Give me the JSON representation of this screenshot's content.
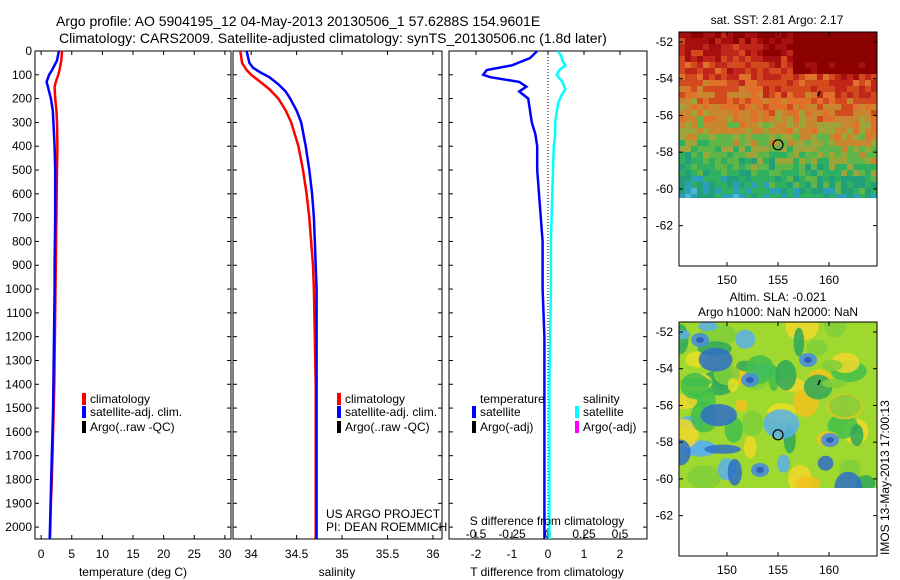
{
  "header": {
    "line1": "Argo profile: AO 5904195_12 04-May-2013 20130506_1 57.6288S 154.9601E",
    "line2": "Climatology: CARS2009. Satellite-adjusted climatology: synTS_20130506.nc (1.8d later)"
  },
  "side_label": "IMOS 13-May-2013 17:00:13",
  "colors": {
    "climatology": "#ff0000",
    "satellite": "#0000ff",
    "argo": "#000000",
    "salinity_satellite": "#00ffff",
    "salinity_argo": "#ff00ff"
  },
  "chart_data": [
    {
      "type": "line",
      "panel": "temperature",
      "xlabel": "temperature (deg C)",
      "ylim": [
        2050,
        0
      ],
      "xlim": [
        -1,
        31
      ],
      "xticks": [
        0,
        5,
        10,
        15,
        20,
        25,
        30
      ],
      "yticks": [
        0,
        100,
        200,
        300,
        400,
        500,
        600,
        700,
        800,
        900,
        1000,
        1100,
        1200,
        1300,
        1400,
        1500,
        1600,
        1700,
        1800,
        1900,
        2000
      ],
      "legend": [
        "climatology",
        "satellite-adj. clim.",
        "Argo(..raw -QC)"
      ],
      "series": [
        {
          "name": "climatology",
          "color": "#ff0000",
          "depth": [
            0,
            40,
            80,
            100,
            130,
            150,
            200,
            250,
            300,
            400,
            500,
            600,
            700,
            800,
            900,
            1000,
            1100,
            1200,
            1300,
            1400,
            1500,
            1600,
            1700,
            1800,
            1900,
            2000,
            2050
          ],
          "values": [
            3.4,
            3.3,
            3.0,
            2.8,
            2.4,
            2.2,
            2.3,
            2.5,
            2.6,
            2.65,
            2.6,
            2.55,
            2.5,
            2.45,
            2.4,
            2.35,
            2.3,
            2.25,
            2.2,
            2.15,
            2.05,
            1.95,
            1.85,
            1.75,
            1.6,
            1.5,
            1.45
          ]
        },
        {
          "name": "satellite-adj. clim.",
          "color": "#0000ff",
          "depth": [
            0,
            40,
            80,
            100,
            130,
            150,
            200,
            250,
            300,
            400,
            500,
            600,
            700,
            800,
            900,
            1000,
            1100,
            1200,
            1300,
            1400,
            1500,
            1600,
            1700,
            1800,
            1900,
            2000,
            2050
          ],
          "values": [
            2.9,
            2.6,
            1.8,
            1.3,
            0.9,
            1.1,
            1.6,
            1.9,
            2.0,
            2.2,
            2.3,
            2.3,
            2.3,
            2.25,
            2.2,
            2.2,
            2.15,
            2.1,
            2.05,
            2.0,
            1.95,
            1.85,
            1.75,
            1.65,
            1.55,
            1.45,
            1.4
          ]
        }
      ]
    },
    {
      "type": "line",
      "panel": "salinity",
      "xlabel": "salinity",
      "ylim": [
        2050,
        0
      ],
      "xlim": [
        33.8,
        36.1
      ],
      "xticks": [
        34,
        34.5,
        35,
        35.5,
        36
      ],
      "xtick_labels": [
        "34",
        "34.5",
        "35",
        "35.5",
        "36"
      ],
      "legend": [
        "climatology",
        "satellite-adj. clim.",
        "Argo(..raw -QC)"
      ],
      "annotation": [
        "US ARGO PROJECT",
        "PI: DEAN ROEMMICH"
      ],
      "series": [
        {
          "name": "climatology",
          "color": "#ff0000",
          "depth": [
            0,
            50,
            80,
            100,
            130,
            160,
            200,
            250,
            300,
            400,
            500,
            600,
            700,
            800,
            900,
            1000,
            1200,
            1400,
            1600,
            1800,
            2000,
            2050
          ],
          "values": [
            33.88,
            33.9,
            33.95,
            34.0,
            34.1,
            34.2,
            34.3,
            34.38,
            34.44,
            34.52,
            34.57,
            34.61,
            34.64,
            34.66,
            34.68,
            34.69,
            34.7,
            34.71,
            34.71,
            34.71,
            34.71,
            34.71
          ]
        },
        {
          "name": "satellite-adj. clim.",
          "color": "#0000ff",
          "depth": [
            0,
            50,
            70,
            90,
            110,
            140,
            170,
            200,
            250,
            300,
            400,
            500,
            600,
            700,
            800,
            900,
            1000,
            1200,
            1400,
            1600,
            1800,
            2000,
            2050
          ],
          "values": [
            33.95,
            33.98,
            34.02,
            34.1,
            34.2,
            34.3,
            34.38,
            34.43,
            34.5,
            34.55,
            34.6,
            34.64,
            34.67,
            34.69,
            34.7,
            34.71,
            34.72,
            34.72,
            34.72,
            34.72,
            34.72,
            34.72,
            34.72
          ]
        }
      ]
    },
    {
      "type": "line",
      "panel": "difference",
      "xlabel": "T difference from climatology",
      "xlabel_top": "S difference from climatology",
      "ylim": [
        2050,
        0
      ],
      "xlim": [
        -2.75,
        2.75
      ],
      "xticks": [
        -2,
        -1,
        0,
        1,
        2
      ],
      "xticks_top": [
        -0.5,
        -0.25,
        0,
        0.25,
        0.5
      ],
      "legend_left_title": "temperature",
      "legend_left": [
        "satellite",
        "Argo(-adj)"
      ],
      "legend_right_title": "salinity",
      "legend_right": [
        "satellite",
        "Argo(-adj)"
      ],
      "series": [
        {
          "name": "temperature satellite",
          "color": "#0000ff",
          "depth": [
            0,
            30,
            60,
            80,
            100,
            110,
            130,
            150,
            170,
            200,
            250,
            300,
            350,
            400,
            500,
            600,
            700,
            800,
            900,
            1000,
            1200,
            1400,
            1600,
            1800,
            2000,
            2050
          ],
          "values": [
            -0.3,
            -0.5,
            -1.0,
            -1.7,
            -1.8,
            -1.6,
            -0.8,
            -0.6,
            -0.8,
            -0.55,
            -0.5,
            -0.45,
            -0.35,
            -0.3,
            -0.3,
            -0.25,
            -0.2,
            -0.15,
            -0.15,
            -0.15,
            -0.1,
            -0.1,
            -0.1,
            -0.1,
            -0.1,
            -0.1
          ]
        },
        {
          "name": "salinity satellite",
          "color": "#00ffff",
          "depth": [
            0,
            20,
            40,
            60,
            80,
            100,
            130,
            160,
            190,
            220,
            260,
            300,
            350,
            400,
            500,
            600,
            700,
            800,
            900,
            1000,
            1200,
            1400,
            1600,
            1800,
            2000,
            2050
          ],
          "values": [
            0.07,
            0.09,
            0.1,
            0.12,
            0.08,
            0.06,
            0.1,
            0.12,
            0.09,
            0.07,
            0.06,
            0.05,
            0.05,
            0.04,
            0.035,
            0.03,
            0.025,
            0.02,
            0.02,
            0.02,
            0.015,
            0.01,
            0.01,
            0.01,
            0.01,
            0.01
          ]
        }
      ]
    }
  ],
  "map_sst": {
    "title": "sat. SST: 2.81  Argo: 2.17",
    "yticks": [
      -52,
      -54,
      -56,
      -58,
      -60,
      -62
    ],
    "xticks": [
      150,
      155,
      160
    ],
    "argo_location": {
      "lon": 155.0,
      "lat": -57.6
    }
  },
  "map_sla": {
    "title_line1": "Altim. SLA: -0.021",
    "title_line2": "Argo h1000: NaN h2000: NaN",
    "yticks": [
      -52,
      -54,
      -56,
      -58,
      -60,
      -62
    ],
    "xticks": [
      150,
      155,
      160
    ],
    "argo_location": {
      "lon": 155.0,
      "lat": -57.6
    }
  }
}
